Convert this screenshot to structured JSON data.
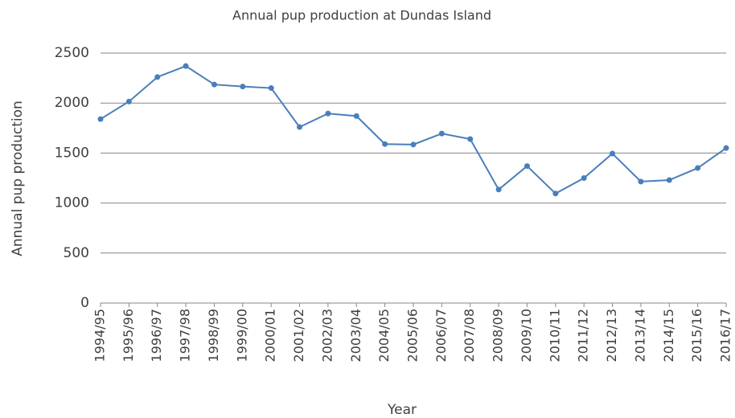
{
  "chart_data": {
    "type": "line",
    "title": "Annual pup production at Dundas Island",
    "x_label": "Year",
    "y_label": "Annual pup production",
    "categories": [
      "1994/95",
      "1995/96",
      "1996/97",
      "1997/98",
      "1998/99",
      "1999/00",
      "2000/01",
      "2001/02",
      "2002/03",
      "2003/04",
      "2004/05",
      "2005/06",
      "2006/07",
      "2007/08",
      "2008/09",
      "2009/10",
      "2010/11",
      "2011/12",
      "2012/13",
      "2013/14",
      "2014/15",
      "2015/16",
      "2016/17"
    ],
    "series": [
      {
        "name": "Annual pup production",
        "color": "#4a7ebb",
        "values": [
          1840,
          2015,
          2260,
          2370,
          2185,
          2165,
          2150,
          1760,
          1895,
          1870,
          1590,
          1585,
          1695,
          1640,
          1135,
          1370,
          1095,
          1250,
          1495,
          1215,
          1230,
          1350,
          1550
        ]
      }
    ],
    "ylim": [
      0,
      2500
    ],
    "yticks": [
      0,
      500,
      1000,
      1500,
      2000,
      2500
    ],
    "grid": true
  }
}
